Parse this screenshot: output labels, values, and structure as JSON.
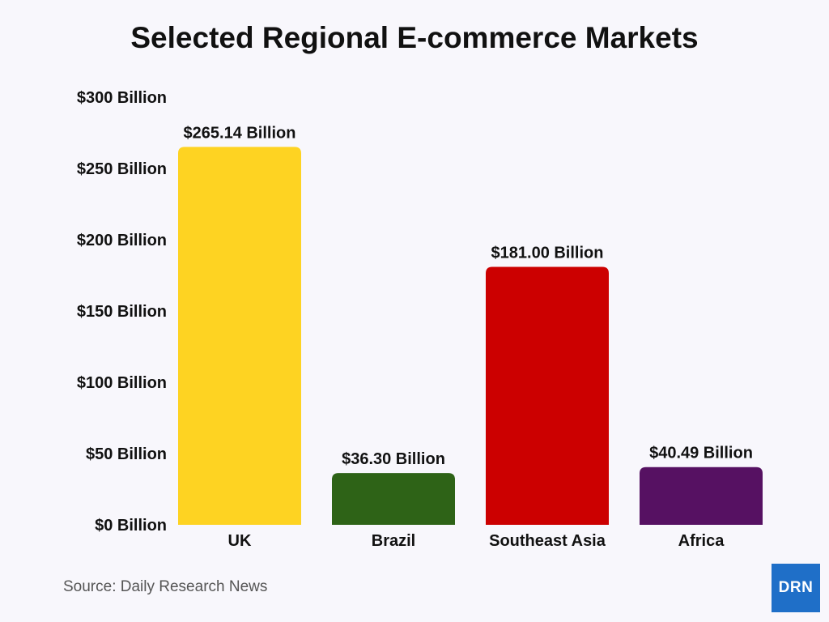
{
  "chart_data": {
    "type": "bar",
    "title": "Selected Regional E-commerce Markets",
    "categories": [
      "UK",
      "Brazil",
      "Southeast Asia",
      "Africa"
    ],
    "values": [
      265.14,
      36.3,
      181.0,
      40.49
    ],
    "value_labels": [
      "$265.14 Billion",
      "$36.30 Billion",
      "$181.00 Billion",
      "$40.49 Billion"
    ],
    "colors": [
      "#fed322",
      "#2e6317",
      "#cc0000",
      "#561162"
    ],
    "yticks": [
      0,
      50,
      100,
      150,
      200,
      250,
      300
    ],
    "ytick_labels": [
      "$0 Billion",
      "$50 Billion",
      "$100 Billion",
      "$150 Billion",
      "$200 Billion",
      "$250 Billion",
      "$300 Billion"
    ],
    "ylim": [
      0,
      300
    ],
    "xlabel": "",
    "ylabel": "",
    "grid": false
  },
  "source": "Source: Daily Research News",
  "logo_text": "DRN"
}
